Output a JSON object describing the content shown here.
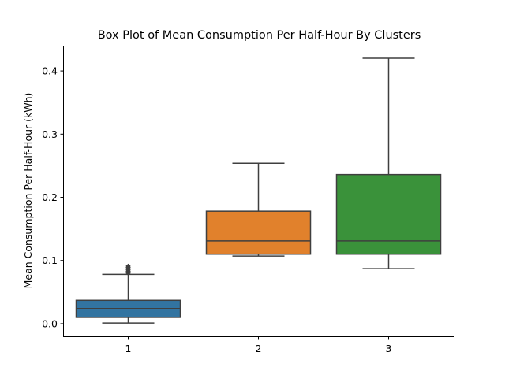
{
  "chart_data": {
    "type": "box",
    "title": "Box Plot of Mean Consumption Per Half-Hour By Clusters",
    "xlabel": "",
    "ylabel": "Mean Consumption Per Half-Hour (kWh)",
    "categories": [
      "1",
      "2",
      "3"
    ],
    "ylim": [
      -0.02,
      0.44
    ],
    "yticks": [
      0.0,
      0.1,
      0.2,
      0.3,
      0.4
    ],
    "ytick_labels": [
      "0.0",
      "0.1",
      "0.2",
      "0.3",
      "0.4"
    ],
    "grid": false,
    "legend": "none",
    "boxes": [
      {
        "category": "1",
        "color": "#3274a1",
        "whisker_low": 0.001,
        "q1": 0.01,
        "median": 0.024,
        "q3": 0.037,
        "whisker_high": 0.078,
        "outliers": [
          0.08,
          0.083,
          0.085,
          0.087,
          0.089,
          0.091
        ]
      },
      {
        "category": "2",
        "color": "#e1812c",
        "whisker_low": 0.107,
        "q1": 0.11,
        "median": 0.131,
        "q3": 0.178,
        "whisker_high": 0.254,
        "outliers": []
      },
      {
        "category": "3",
        "color": "#3a923a",
        "whisker_low": 0.087,
        "q1": 0.11,
        "median": 0.131,
        "q3": 0.236,
        "whisker_high": 0.42,
        "outliers": []
      }
    ],
    "line_color": "#3f3f3f"
  }
}
